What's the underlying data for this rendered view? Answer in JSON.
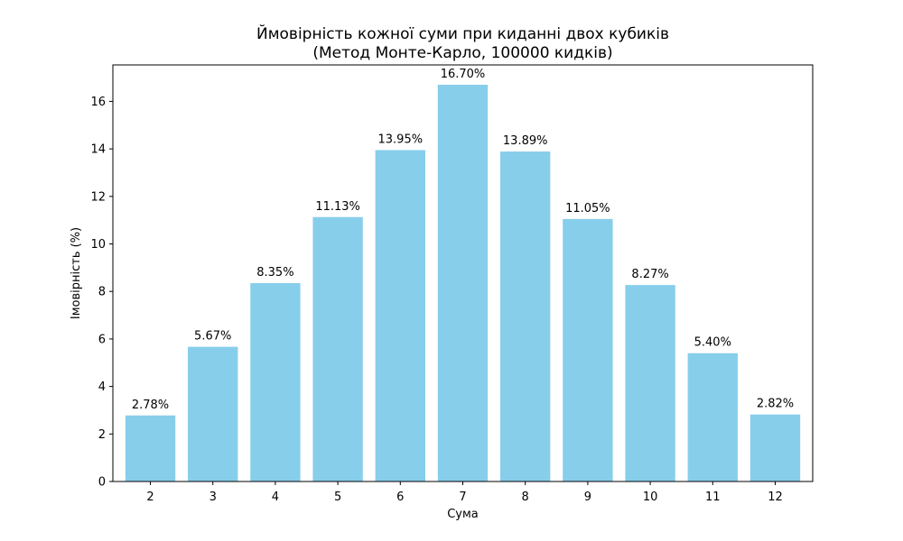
{
  "chart_data": {
    "type": "bar",
    "title_line1": "Ймовірність кожної суми при киданні двох кубиків",
    "title_line2": "(Метод Монте-Карло, 100000 кидків)",
    "xlabel": "Сума",
    "ylabel": "Імовірність (%)",
    "categories": [
      "2",
      "3",
      "4",
      "5",
      "6",
      "7",
      "8",
      "9",
      "10",
      "11",
      "12"
    ],
    "values": [
      2.78,
      5.67,
      8.35,
      11.13,
      13.95,
      16.7,
      13.89,
      11.05,
      8.27,
      5.4,
      2.82
    ],
    "data_labels": [
      "2.78%",
      "5.67%",
      "8.35%",
      "11.13%",
      "13.95%",
      "16.70%",
      "13.89%",
      "11.05%",
      "8.27%",
      "5.40%",
      "2.82%"
    ],
    "yticks": [
      0,
      2,
      4,
      6,
      8,
      10,
      12,
      14,
      16
    ],
    "ylim": [
      0,
      17.535
    ],
    "grid": false,
    "bar_color": "#87CEEB",
    "axis_color": "#000000"
  }
}
